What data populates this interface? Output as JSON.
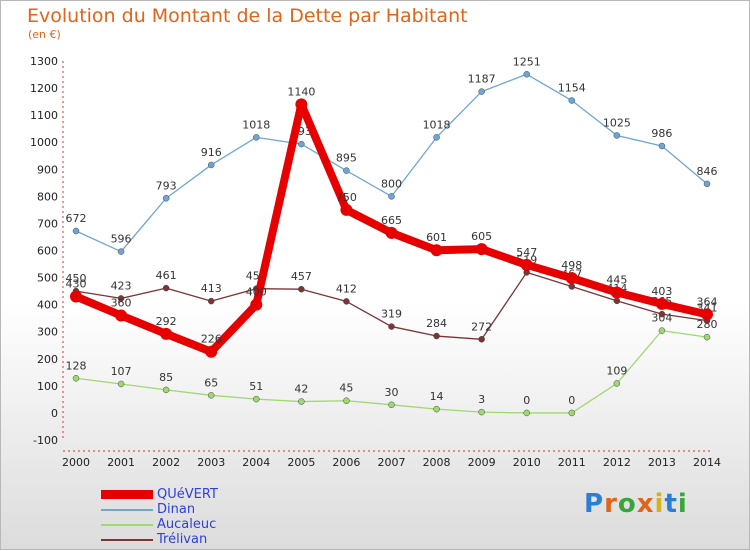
{
  "title": "Evolution du Montant de la Dette par Habitant",
  "unit_label": "(en €)",
  "logo_text": "Proxiti",
  "chart_data": {
    "type": "line",
    "title": "Evolution du Montant de la Dette par Habitant",
    "ylabel": "(en €)",
    "xlabel": "",
    "categories": [
      "2000",
      "2001",
      "2002",
      "2003",
      "2004",
      "2005",
      "2006",
      "2007",
      "2008",
      "2009",
      "2010",
      "2011",
      "2012",
      "2013",
      "2014"
    ],
    "ylim": [
      -100,
      1300
    ],
    "yticks": [
      -100,
      0,
      100,
      200,
      300,
      400,
      500,
      600,
      700,
      800,
      900,
      1000,
      1100,
      1200,
      1300
    ],
    "grid": false,
    "legend_position": "bottom-left",
    "series": [
      {
        "name": "QUéVERT",
        "color": "#e60000",
        "values": [
          430,
          360,
          292,
          226,
          400,
          1140,
          750,
          665,
          601,
          605,
          547,
          498,
          445,
          403,
          364
        ]
      },
      {
        "name": "Dinan",
        "color": "#6da6d6",
        "values": [
          672,
          596,
          793,
          916,
          1018,
          993,
          895,
          800,
          1018,
          1187,
          1251,
          1154,
          1025,
          986,
          846
        ]
      },
      {
        "name": "Aucaleuc",
        "color": "#9fd870",
        "values": [
          128,
          107,
          85,
          65,
          51,
          42,
          45,
          30,
          14,
          3,
          0,
          0,
          109,
          304,
          280
        ]
      },
      {
        "name": "Trélivan",
        "color": "#7a3535",
        "values": [
          450,
          423,
          461,
          413,
          459,
          457,
          412,
          319,
          284,
          272,
          519,
          467,
          414,
          365,
          341
        ]
      }
    ]
  }
}
